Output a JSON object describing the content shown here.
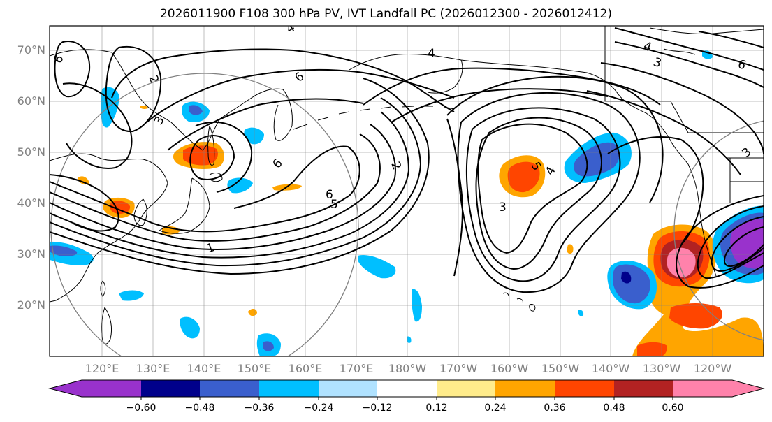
{
  "title": "2026011900 F108 300 hPa PV, IVT Landfall PC (2026012300 - 2026012412)",
  "lat_labels": [
    "70°N",
    "60°N",
    "50°N",
    "40°N",
    "30°N",
    "20°N"
  ],
  "lon_labels": [
    "120°E",
    "130°E",
    "140°E",
    "150°E",
    "160°E",
    "170°E",
    "180°W",
    "170°W",
    "160°W",
    "150°W",
    "140°W",
    "130°W",
    "120°W"
  ],
  "colorbar": {
    "labels": [
      "−0.60",
      "−0.48",
      "−0.36",
      "−0.24",
      "−0.12",
      "0.12",
      "0.24",
      "0.36",
      "0.48",
      "0.60"
    ],
    "colors": [
      "#9932cc",
      "#00008b",
      "#3a5fcd",
      "#00bfff",
      "#b0e2ff",
      "#ffffff",
      "#ffec8b",
      "#ffa500",
      "#ff4500",
      "#b22222",
      "#ff82ab"
    ]
  },
  "contour_labels": [
    "1",
    "2",
    "3",
    "4",
    "5",
    "6"
  ],
  "palette": {
    "purple": "#9932cc",
    "navy": "#00008b",
    "blue": "#3a5fcd",
    "sky": "#00bfff",
    "lightblue": "#b0e2ff",
    "yellow": "#ffec8b",
    "orange": "#ffa500",
    "redorange": "#ff4500",
    "firebrick": "#b22222",
    "pink": "#ff82ab"
  }
}
